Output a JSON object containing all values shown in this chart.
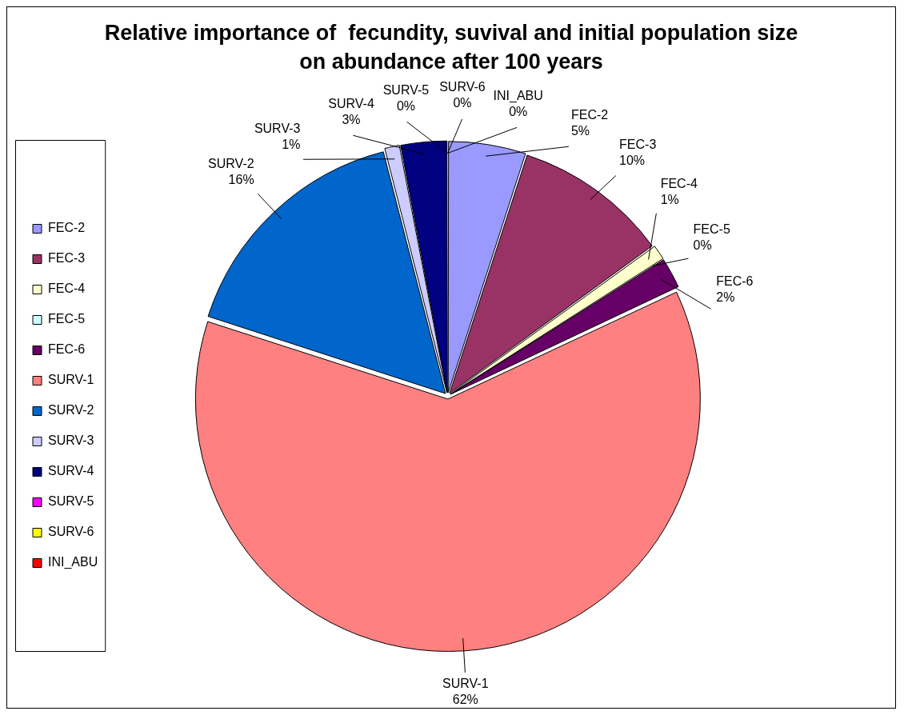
{
  "chart_data": {
    "type": "pie",
    "title": "Relative importance of  fecundity, suvival and initial population size on abundance after 100 years",
    "categories": [
      "FEC-2",
      "FEC-3",
      "FEC-4",
      "FEC-5",
      "FEC-6",
      "SURV-1",
      "SURV-2",
      "SURV-3",
      "SURV-4",
      "SURV-5",
      "SURV-6",
      "INI_ABU"
    ],
    "values": [
      5,
      10,
      1,
      0,
      2,
      62,
      16,
      1,
      3,
      0,
      0,
      0
    ],
    "value_labels": [
      "5%",
      "10%",
      "1%",
      "0%",
      "2%",
      "62%",
      "16%",
      "1%",
      "3%",
      "0%",
      "0%",
      "0%"
    ],
    "colors": [
      "#9999ff",
      "#993366",
      "#ffffcc",
      "#ccffff",
      "#660066",
      "#ff8080",
      "#0066cc",
      "#ccccff",
      "#000080",
      "#ff00ff",
      "#ffff00",
      "#ff0000"
    ],
    "legend": "left"
  }
}
